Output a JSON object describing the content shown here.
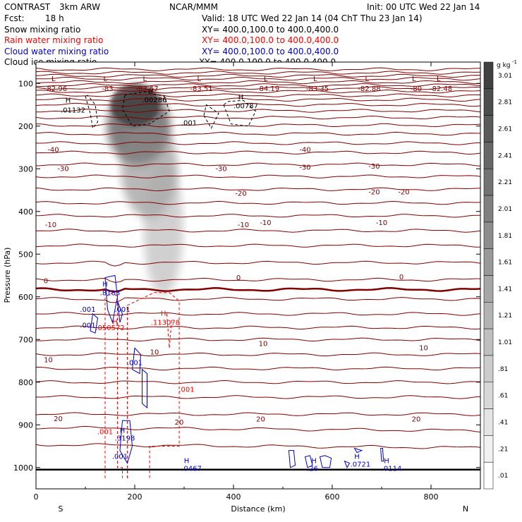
{
  "header": {
    "project": "CONTRAST",
    "model": "3km ARW",
    "center": "NCAR/MMM",
    "init": "Init: 00 UTC Wed 22 Jan 14",
    "fcst_label": "Fcst:",
    "fcst_value": "18 h",
    "valid": "Valid: 18 UTC Wed 22 Jan 14 (04 ChT Thu 23 Jan 14)",
    "fields": [
      {
        "name": "Snow mixing ratio",
        "xy": "",
        "color": "#000000"
      },
      {
        "name": "Rain water mixing ratio",
        "xy": "XY=  400.0,100.0 to 400.0,400.0",
        "color": "#ff0000"
      },
      {
        "name": "Cloud water mixing ratio",
        "xy": "XY=  400.0,100.0 to 400.0,400.0",
        "color": "#0000cc"
      },
      {
        "name": "Cloud ice mixing ratio",
        "xy": "XY=  400.0,100.0 to 400.0,400.0",
        "color": "#000000"
      }
    ],
    "snow_xy": "XY=  400.0,100.0 to 400.0,400.0"
  },
  "chart_data": {
    "type": "cross-section",
    "xlabel": "Distance (km)",
    "ylabel": "Pressure (hPa)",
    "xlim": [
      0,
      900
    ],
    "ylim": [
      1050,
      50
    ],
    "x_ticks": [
      0,
      200,
      400,
      600,
      800
    ],
    "y_ticks": [
      100,
      200,
      300,
      400,
      500,
      600,
      700,
      800,
      900,
      1000
    ],
    "left_end": "S",
    "right_end": "N",
    "colorbar": {
      "unit": "g kg",
      "unit_exp": "-1",
      "levels": [
        3.01,
        2.81,
        2.61,
        2.41,
        2.21,
        2.01,
        1.81,
        1.61,
        1.41,
        1.21,
        1.01,
        0.81,
        0.61,
        0.41,
        0.21,
        0.01
      ],
      "labels": [
        "3.01",
        "2.81",
        "2.61",
        "2.41",
        "2.21",
        "2.01",
        "1.81",
        "1.61",
        "1.41",
        "1.21",
        "1.01",
        ".81",
        ".61",
        ".41",
        ".21",
        ".01"
      ]
    },
    "temperature_contours": {
      "color": "#800000",
      "pressure_levels": [
        950,
        910,
        875,
        835,
        800,
        768,
        735,
        700,
        672,
        640,
        605,
        583,
        560,
        520,
        480,
        445,
        410,
        380,
        348,
        318,
        290,
        262,
        240,
        218,
        198,
        180,
        164,
        150,
        138,
        128,
        119,
        111,
        104,
        97,
        89,
        82,
        75,
        67
      ],
      "labels": [
        {
          "text": "0",
          "x": 20,
          "p": 563
        },
        {
          "text": "0",
          "x": 410,
          "p": 556
        },
        {
          "text": "0",
          "x": 740,
          "p": 554
        },
        {
          "text": "-10",
          "x": 30,
          "p": 432
        },
        {
          "text": "-10",
          "x": 420,
          "p": 432
        },
        {
          "text": "-10",
          "x": 465,
          "p": 427
        },
        {
          "text": "-10",
          "x": 700,
          "p": 427
        },
        {
          "text": "-20",
          "x": 415,
          "p": 358
        },
        {
          "text": "-20",
          "x": 685,
          "p": 355
        },
        {
          "text": "-20",
          "x": 745,
          "p": 355
        },
        {
          "text": "-30",
          "x": 55,
          "p": 300
        },
        {
          "text": "-30",
          "x": 375,
          "p": 300
        },
        {
          "text": "-30",
          "x": 545,
          "p": 297
        },
        {
          "text": "-30",
          "x": 685,
          "p": 295
        },
        {
          "text": "-40",
          "x": 35,
          "p": 256
        },
        {
          "text": "-40",
          "x": 545,
          "p": 256
        },
        {
          "text": "10",
          "x": 240,
          "p": 730
        },
        {
          "text": "10",
          "x": 460,
          "p": 710
        },
        {
          "text": "10",
          "x": 785,
          "p": 720
        },
        {
          "text": "10",
          "x": 25,
          "p": 748
        },
        {
          "text": "20",
          "x": 45,
          "p": 886
        },
        {
          "text": "20",
          "x": 290,
          "p": 895
        },
        {
          "text": "20",
          "x": 455,
          "p": 887
        },
        {
          "text": "20",
          "x": 770,
          "p": 887
        }
      ]
    },
    "top_minima": [
      {
        "text": "-82.96",
        "x": 40
      },
      {
        "text": "-83",
        "x": 145
      },
      {
        "text": "-83.67",
        "x": 225
      },
      {
        "text": "-83.51",
        "x": 335
      },
      {
        "text": "-84.19",
        "x": 470
      },
      {
        "text": "-83.35",
        "x": 570
      },
      {
        "text": "-82.88",
        "x": 675
      },
      {
        "text": "-80",
        "x": 770
      },
      {
        "text": "-82.48",
        "x": 820
      }
    ],
    "ice_labels": [
      {
        "text": "H",
        "x": 65,
        "p": 145
      },
      {
        "text": ".01132",
        "x": 75,
        "p": 168
      },
      {
        "text": "H",
        "x": 232,
        "p": 124
      },
      {
        "text": ".00286",
        "x": 240,
        "p": 144
      },
      {
        "text": "H",
        "x": 415,
        "p": 138
      },
      {
        "text": ".00787",
        "x": 425,
        "p": 158
      },
      {
        "text": ".001",
        "x": 310,
        "p": 198
      }
    ],
    "rain_labels": [
      {
        "text": "H",
        "x": 160,
        "p": 664
      },
      {
        "text": ".050572",
        "x": 150,
        "p": 678
      },
      {
        "text": "H",
        "x": 258,
        "p": 644
      },
      {
        "text": ".113078",
        "x": 262,
        "p": 666
      },
      {
        "text": ".001",
        "x": 305,
        "p": 823
      },
      {
        "text": ".001",
        "x": 140,
        "p": 922
      }
    ],
    "cloud_water_labels": [
      {
        "text": "H",
        "x": 140,
        "p": 576
      },
      {
        "text": ".8183",
        "x": 150,
        "p": 596
      },
      {
        "text": ".001",
        "x": 105,
        "p": 635
      },
      {
        "text": ".001",
        "x": 175,
        "p": 635
      },
      {
        "text": ".001",
        "x": 105,
        "p": 672
      },
      {
        "text": ".001",
        "x": 200,
        "p": 760
      },
      {
        "text": "H",
        "x": 175,
        "p": 919
      },
      {
        "text": ".3198",
        "x": 180,
        "p": 937
      },
      {
        "text": ".001",
        "x": 170,
        "p": 980
      },
      {
        "text": "H",
        "x": 305,
        "p": 990
      },
      {
        "text": ".0467",
        "x": 315,
        "p": 1008
      },
      {
        "text": "H",
        "x": 563,
        "p": 990
      },
      {
        "text": ".26",
        "x": 560,
        "p": 1008
      },
      {
        "text": "H",
        "x": 650,
        "p": 980
      },
      {
        "text": ".0721",
        "x": 657,
        "p": 998
      },
      {
        "text": "H",
        "x": 710,
        "p": 990
      },
      {
        "text": ".0114",
        "x": 720,
        "p": 1008
      }
    ],
    "snow_plume": {
      "x_center": 265,
      "p_top": 110,
      "p_bottom": 560,
      "max": 2.8
    }
  }
}
